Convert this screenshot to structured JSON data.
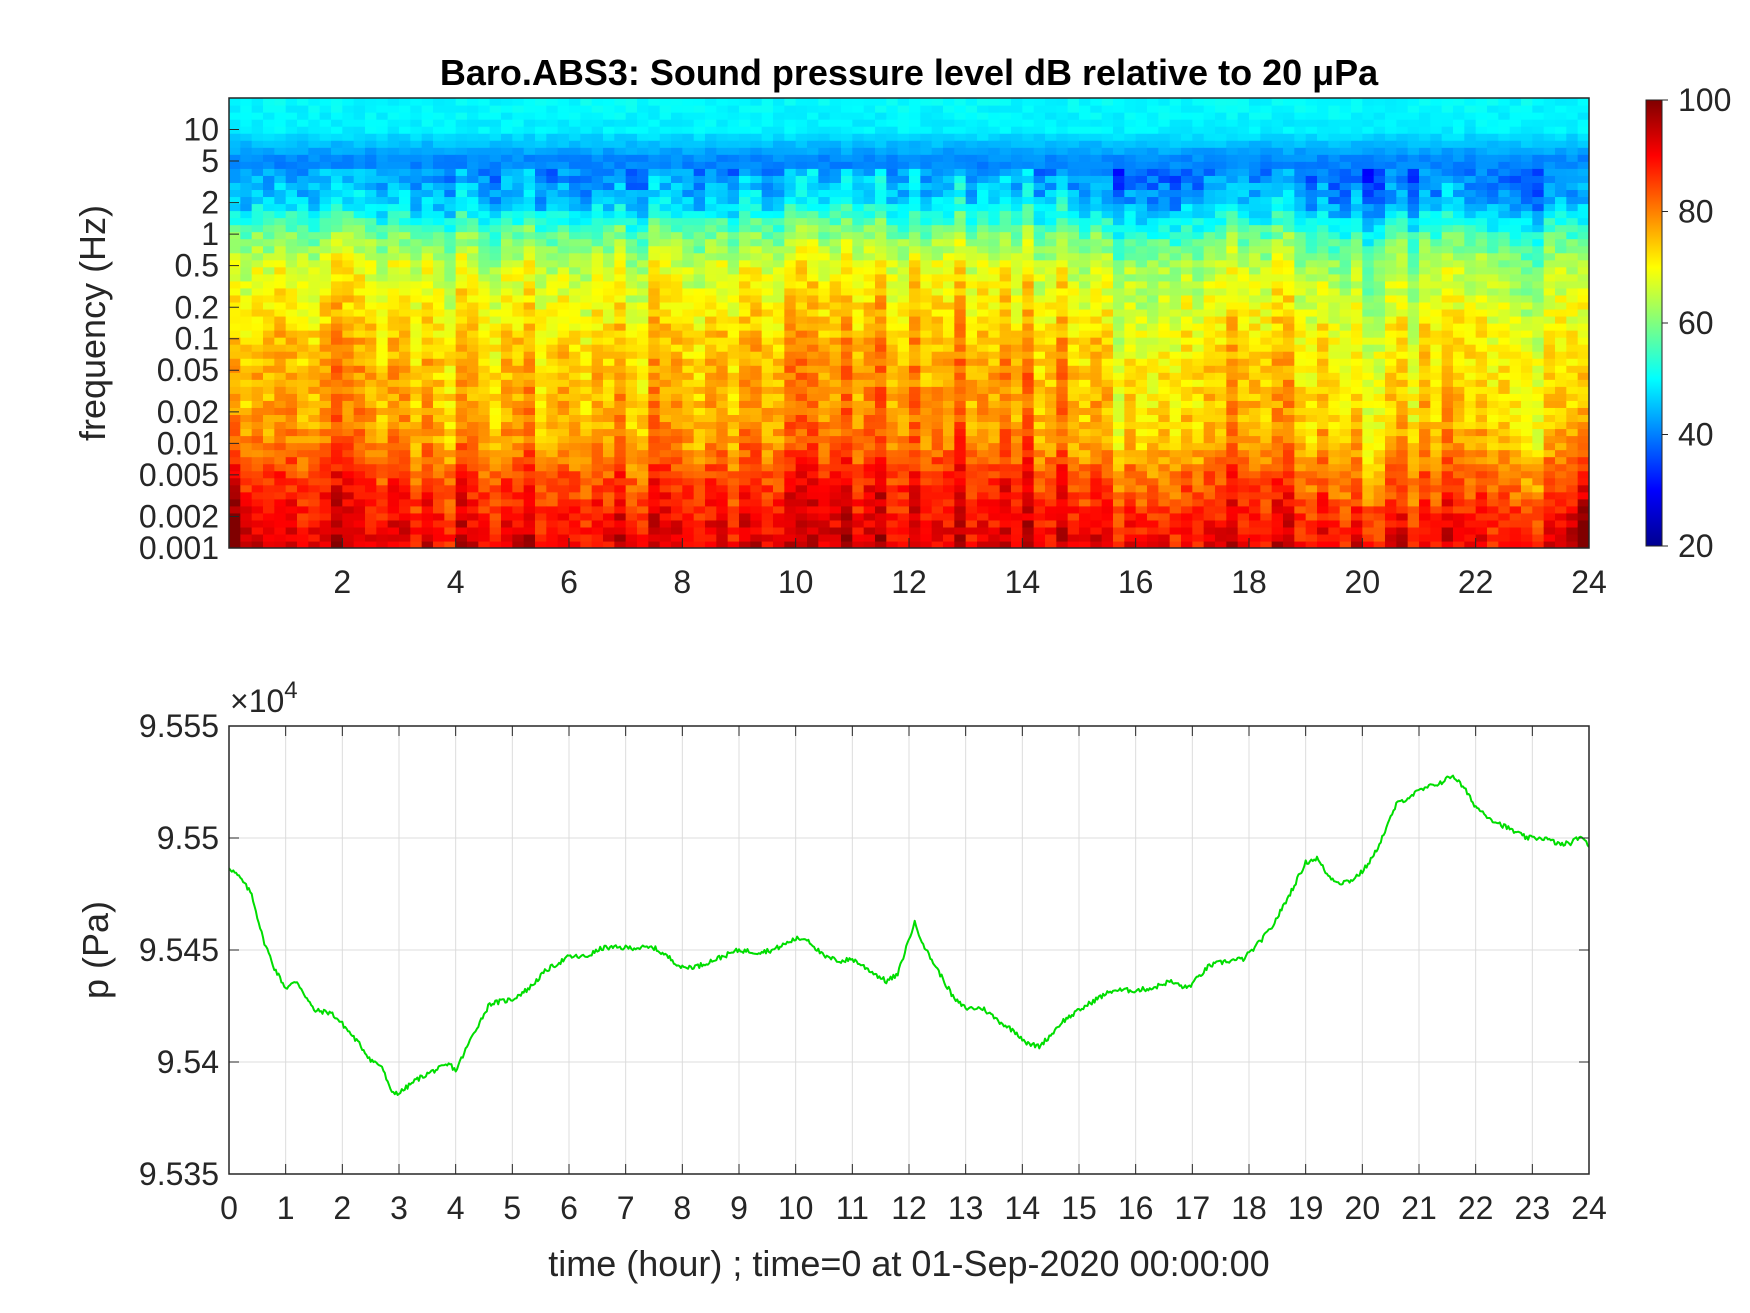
{
  "chart_data": [
    {
      "type": "heatmap",
      "title": "Baro.ABS3: Sound pressure level dB relative to 20 μPa",
      "xlabel": "",
      "ylabel": "frequency (Hz)",
      "xlim": [
        0,
        24
      ],
      "ylim": [
        0.001,
        20
      ],
      "yscale": "log",
      "x_ticks": [
        2,
        4,
        6,
        8,
        10,
        12,
        14,
        16,
        18,
        20,
        22,
        24
      ],
      "x_tick_labels": [
        "2",
        "4",
        "6",
        "8",
        "10",
        "12",
        "14",
        "16",
        "18",
        "20",
        "22",
        "24"
      ],
      "y_ticks": [
        0.001,
        0.002,
        0.005,
        0.01,
        0.02,
        0.05,
        0.1,
        0.2,
        0.5,
        1,
        2,
        5,
        10
      ],
      "y_tick_labels": [
        "0.001",
        "0.002",
        "0.005",
        "0.01",
        "0.02",
        "0.05",
        "0.1",
        "0.2",
        "0.5",
        "1",
        "2",
        "5",
        "10"
      ],
      "colorbar": {
        "colormap": "jet",
        "range": [
          20,
          100
        ],
        "ticks": [
          20,
          40,
          60,
          80,
          100
        ],
        "tick_labels": [
          "20",
          "40",
          "60",
          "80",
          "100"
        ]
      },
      "description_profile_db": {
        "freq_hz": [
          0.001,
          0.002,
          0.005,
          0.01,
          0.02,
          0.05,
          0.1,
          0.2,
          0.5,
          1,
          2,
          5,
          10,
          20
        ],
        "level_db": [
          92,
          89,
          84,
          78,
          76,
          75,
          73,
          70,
          66,
          58,
          46,
          40,
          49,
          50
        ]
      }
    },
    {
      "type": "line",
      "title": "",
      "xlabel": "time (hour) ; time=0 at 01-Sep-2020 00:00:00",
      "ylabel": "p (Pa)",
      "y_exponent_label": "×10",
      "y_exponent_power": "4",
      "xlim": [
        0,
        24
      ],
      "ylim": [
        9.535,
        9.555
      ],
      "grid": true,
      "line_color": "#00dd00",
      "x_ticks": [
        0,
        1,
        2,
        3,
        4,
        5,
        6,
        7,
        8,
        9,
        10,
        11,
        12,
        13,
        14,
        15,
        16,
        17,
        18,
        19,
        20,
        21,
        22,
        23,
        24
      ],
      "x_tick_labels": [
        "0",
        "1",
        "2",
        "3",
        "4",
        "5",
        "6",
        "7",
        "8",
        "9",
        "10",
        "11",
        "12",
        "13",
        "14",
        "15",
        "16",
        "17",
        "18",
        "19",
        "20",
        "21",
        "22",
        "23",
        "24"
      ],
      "y_ticks": [
        9.535,
        9.54,
        9.545,
        9.55,
        9.555
      ],
      "y_tick_labels": [
        "9.535",
        "9.54",
        "9.545",
        "9.55",
        "9.555"
      ],
      "series": [
        {
          "x": [
            0,
            0.2,
            0.4,
            0.6,
            0.8,
            1.0,
            1.2,
            1.5,
            1.8,
            2.0,
            2.3,
            2.5,
            2.7,
            2.85,
            3.0,
            3.3,
            3.6,
            3.9,
            4.0,
            4.3,
            4.6,
            5.0,
            5.3,
            5.6,
            6.0,
            6.3,
            6.6,
            7.0,
            7.5,
            7.8,
            8.0,
            8.3,
            8.6,
            9.0,
            9.3,
            9.6,
            10.0,
            10.2,
            10.5,
            10.8,
            11.0,
            11.3,
            11.6,
            11.8,
            12.0,
            12.1,
            12.3,
            12.6,
            12.8,
            13.0,
            13.3,
            13.6,
            13.9,
            14.1,
            14.3,
            14.5,
            14.7,
            15.0,
            15.3,
            15.6,
            16.0,
            16.3,
            16.6,
            16.9,
            17.0,
            17.3,
            17.6,
            17.9,
            18.1,
            18.4,
            18.7,
            19.0,
            19.2,
            19.4,
            19.6,
            19.8,
            20.0,
            20.2,
            20.4,
            20.6,
            20.8,
            21.0,
            21.2,
            21.4,
            21.6,
            21.8,
            22.0,
            22.3,
            22.6,
            22.9,
            23.2,
            23.5,
            23.7,
            23.85,
            24.0
          ],
          "y": [
            9.5487,
            9.5482,
            9.5475,
            9.5455,
            9.5442,
            9.5433,
            9.5436,
            9.5423,
            9.5422,
            9.5417,
            9.5408,
            9.5401,
            9.5398,
            9.5387,
            9.5386,
            9.5392,
            9.5396,
            9.5399,
            9.5396,
            9.5412,
            9.5426,
            9.5428,
            9.5433,
            9.5441,
            9.5447,
            9.5447,
            9.5451,
            9.5451,
            9.5451,
            9.5446,
            9.5442,
            9.5443,
            9.5446,
            9.545,
            9.5449,
            9.545,
            9.5455,
            9.5455,
            9.5447,
            9.5445,
            9.5446,
            9.5441,
            9.5436,
            9.5439,
            9.5455,
            9.5462,
            9.545,
            9.5437,
            9.5428,
            9.5424,
            9.5424,
            9.5418,
            9.5413,
            9.5408,
            9.5407,
            9.5412,
            9.5418,
            9.5423,
            9.5428,
            9.5432,
            9.5432,
            9.5433,
            9.5436,
            9.5433,
            9.5435,
            9.5443,
            9.5445,
            9.5446,
            9.5451,
            9.546,
            9.5474,
            9.5489,
            9.5491,
            9.5483,
            9.548,
            9.5481,
            9.5485,
            9.5492,
            9.5503,
            9.5515,
            9.5518,
            9.5521,
            9.5523,
            9.5525,
            9.5528,
            9.5522,
            9.5514,
            9.5508,
            9.5504,
            9.55,
            9.55,
            9.5497,
            9.5498,
            9.5501,
            9.5496
          ]
        }
      ]
    }
  ]
}
